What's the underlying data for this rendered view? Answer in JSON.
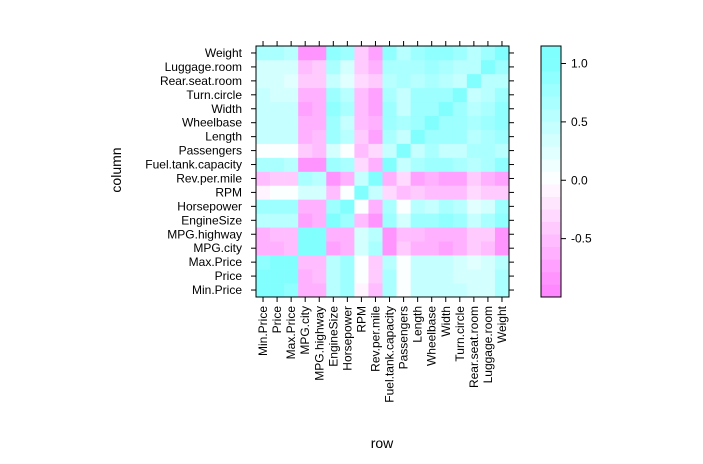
{
  "chart_data": {
    "type": "heatmap",
    "xlabel": "row",
    "ylabel": "column",
    "variables": [
      "Min.Price",
      "Price",
      "Max.Price",
      "MPG.city",
      "MPG.highway",
      "EngineSize",
      "Horsepower",
      "RPM",
      "Rev.per.mile",
      "Fuel.tank.capacity",
      "Passengers",
      "Length",
      "Wheelbase",
      "Width",
      "Turn.circle",
      "Rear.seat.room",
      "Luggage.room",
      "Weight"
    ],
    "values": [
      [
        1.0,
        0.97,
        0.91,
        -0.62,
        -0.58,
        0.6,
        0.8,
        -0.04,
        -0.47,
        0.62,
        0.06,
        0.5,
        0.5,
        0.45,
        0.4,
        0.34,
        0.37,
        0.67
      ],
      [
        0.97,
        1.0,
        0.98,
        -0.59,
        -0.56,
        0.6,
        0.79,
        -0.0,
        -0.43,
        0.62,
        0.06,
        0.5,
        0.5,
        0.46,
        0.39,
        0.31,
        0.36,
        0.65
      ],
      [
        0.91,
        0.98,
        1.0,
        -0.55,
        -0.52,
        0.54,
        0.74,
        0.04,
        -0.37,
        0.58,
        0.06,
        0.47,
        0.46,
        0.42,
        0.35,
        0.26,
        0.32,
        0.59
      ],
      [
        -0.62,
        -0.59,
        -0.55,
        1.0,
        0.94,
        -0.71,
        -0.67,
        0.36,
        0.7,
        -0.81,
        -0.42,
        -0.67,
        -0.67,
        -0.72,
        -0.67,
        -0.38,
        -0.56,
        -0.84
      ],
      [
        -0.58,
        -0.56,
        -0.52,
        0.94,
        1.0,
        -0.63,
        -0.62,
        0.31,
        0.59,
        -0.79,
        -0.47,
        -0.54,
        -0.62,
        -0.64,
        -0.59,
        -0.37,
        -0.46,
        -0.81
      ],
      [
        0.6,
        0.6,
        0.54,
        -0.71,
        -0.63,
        1.0,
        0.73,
        -0.55,
        -0.82,
        0.76,
        0.37,
        0.78,
        0.73,
        0.87,
        0.78,
        0.48,
        0.68,
        0.85
      ],
      [
        0.8,
        0.79,
        0.74,
        -0.67,
        -0.62,
        0.73,
        1.0,
        0.04,
        -0.6,
        0.71,
        0.01,
        0.55,
        0.49,
        0.64,
        0.56,
        0.25,
        0.36,
        0.74
      ],
      [
        -0.04,
        -0.0,
        0.04,
        0.36,
        0.31,
        -0.55,
        0.04,
        1.0,
        0.49,
        -0.33,
        -0.47,
        -0.44,
        -0.47,
        -0.54,
        -0.51,
        -0.35,
        -0.43,
        -0.43
      ],
      [
        -0.47,
        -0.43,
        -0.37,
        0.7,
        0.59,
        -0.82,
        -0.6,
        0.49,
        1.0,
        -0.61,
        -0.33,
        -0.69,
        -0.64,
        -0.78,
        -0.73,
        -0.38,
        -0.59,
        -0.74
      ],
      [
        0.62,
        0.62,
        0.58,
        -0.81,
        -0.79,
        0.76,
        0.71,
        -0.33,
        -0.61,
        1.0,
        0.47,
        0.69,
        0.76,
        0.8,
        0.67,
        0.51,
        0.63,
        0.89
      ],
      [
        0.06,
        0.06,
        0.06,
        -0.42,
        -0.47,
        0.37,
        0.01,
        -0.47,
        -0.33,
        0.47,
        1.0,
        0.49,
        0.69,
        0.49,
        0.45,
        0.68,
        0.65,
        0.55
      ],
      [
        0.5,
        0.5,
        0.47,
        -0.67,
        -0.54,
        0.78,
        0.55,
        -0.44,
        -0.69,
        0.69,
        0.49,
        1.0,
        0.82,
        0.82,
        0.74,
        0.55,
        0.71,
        0.81
      ],
      [
        0.5,
        0.5,
        0.46,
        -0.67,
        -0.62,
        0.73,
        0.49,
        -0.47,
        -0.64,
        0.76,
        0.69,
        0.82,
        1.0,
        0.81,
        0.72,
        0.64,
        0.75,
        0.87
      ],
      [
        0.45,
        0.46,
        0.42,
        -0.72,
        -0.64,
        0.87,
        0.64,
        -0.54,
        -0.78,
        0.8,
        0.49,
        0.82,
        0.81,
        1.0,
        0.82,
        0.53,
        0.7,
        0.87
      ],
      [
        0.4,
        0.39,
        0.35,
        -0.67,
        -0.59,
        0.78,
        0.56,
        -0.51,
        -0.73,
        0.67,
        0.45,
        0.74,
        0.72,
        0.82,
        1.0,
        0.46,
        0.59,
        0.78
      ],
      [
        0.34,
        0.31,
        0.26,
        -0.38,
        -0.37,
        0.48,
        0.25,
        -0.35,
        -0.38,
        0.51,
        0.68,
        0.55,
        0.64,
        0.53,
        0.46,
        1.0,
        0.61,
        0.57
      ],
      [
        0.37,
        0.36,
        0.32,
        -0.56,
        -0.46,
        0.68,
        0.36,
        -0.43,
        -0.59,
        0.63,
        0.65,
        0.71,
        0.75,
        0.7,
        0.59,
        0.61,
        1.0,
        0.73
      ],
      [
        0.67,
        0.65,
        0.59,
        -0.84,
        -0.81,
        0.85,
        0.74,
        -0.43,
        -0.74,
        0.89,
        0.55,
        0.81,
        0.87,
        0.87,
        0.78,
        0.57,
        0.73,
        1.0
      ]
    ],
    "color_range": [
      -1,
      1.15
    ],
    "colorbar_ticks": [
      "-0.5",
      "0.0",
      "0.5",
      "1.0"
    ],
    "colorbar_tick_values": [
      -0.5,
      0.0,
      0.5,
      1.0
    ],
    "colors": {
      "low": "#ff80ff",
      "mid": "#ffffff",
      "high": "#80ffff"
    }
  }
}
